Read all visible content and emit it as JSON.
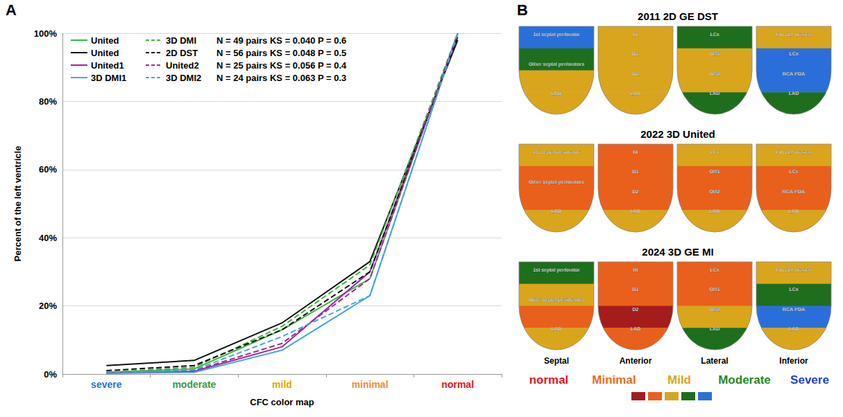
{
  "chart_data": {
    "type": "line",
    "panel": "A",
    "x_label": "CFC color map",
    "y_label": "Percent of the left ventricle",
    "categories": [
      "severe",
      "moderate",
      "mild",
      "minimal",
      "normal"
    ],
    "category_colors": [
      "#2a6fd9",
      "#3c9a3c",
      "#e0a800",
      "#f08a3c",
      "#e8141b"
    ],
    "ylim": [
      0,
      100
    ],
    "yticks": [
      {
        "value": 0,
        "label": "0%"
      },
      {
        "value": 20,
        "label": "20%"
      },
      {
        "value": 40,
        "label": "40%"
      },
      {
        "value": 60,
        "label": "60%"
      },
      {
        "value": 80,
        "label": "80%"
      },
      {
        "value": 100,
        "label": "100%"
      }
    ],
    "grid": true,
    "legend": "upper left",
    "series": [
      {
        "name": "United",
        "color": "#3cb43c",
        "line_style": "solid",
        "values": [
          0.5,
          1.5,
          13,
          28,
          100
        ]
      },
      {
        "name": "United",
        "color": "#111111",
        "line_style": "solid",
        "values": [
          2.5,
          4,
          15,
          33,
          98
        ]
      },
      {
        "name": "United1",
        "color": "#9b2a9b",
        "line_style": "solid",
        "values": [
          0.3,
          0.8,
          8,
          30,
          99
        ]
      },
      {
        "name": "3D DMI1",
        "color": "#4aa3df",
        "line_style": "solid",
        "values": [
          0.2,
          0.5,
          7,
          23,
          100
        ]
      },
      {
        "name": "3D DMI",
        "color": "#3cb43c",
        "line_style": "dashed",
        "stats": "N = 49 pairs KS = 0.040 P = 0.6",
        "values": [
          0.5,
          2,
          14,
          32,
          100
        ]
      },
      {
        "name": "2D DST",
        "color": "#111111",
        "line_style": "dashed",
        "stats": "N = 56 pairs KS = 0.048 P = 0.5",
        "values": [
          1,
          2.5,
          13,
          30,
          99
        ]
      },
      {
        "name": "United2",
        "color": "#9b2a9b",
        "line_style": "dashed",
        "stats": "N = 25 pairs KS = 0.056 P = 0.4",
        "values": [
          0.3,
          1,
          9,
          28,
          100
        ]
      },
      {
        "name": "3D DMI2",
        "color": "#4aa3df",
        "line_style": "dashed",
        "stats": "N = 24 pairs KS = 0.063 P = 0.3",
        "values": [
          0.3,
          1.2,
          11,
          23,
          100
        ]
      }
    ]
  },
  "panel_b": {
    "panel": "B",
    "views": [
      "Septal",
      "Anterior",
      "Lateral",
      "Inferior"
    ],
    "vessel_labels": {
      "Septal": [
        "1st septal perforator",
        "Other septal perforators",
        "LAD"
      ],
      "Anterior": [
        "RI",
        "D1",
        "D2",
        "LAD"
      ],
      "Lateral": [
        "LCx",
        "OM1",
        "OM2",
        "LAD"
      ],
      "Inferior": [
        "Post LV branch",
        "LCx",
        "RCA-PDA",
        "LAD"
      ]
    },
    "maps": [
      {
        "title": "2011 2D GE DST",
        "bands": [
          [
            "Severe",
            "Moderate",
            "Mild",
            "Mild"
          ],
          [
            "Mild",
            "Mild",
            "Mild",
            "Mild"
          ],
          [
            "Moderate",
            "Mild",
            "Mild",
            "Moderate"
          ],
          [
            "Mild",
            "Severe",
            "Severe",
            "Moderate"
          ]
        ]
      },
      {
        "title": "2022  3D United",
        "bands": [
          [
            "Mild",
            "Minimal",
            "Minimal",
            "Mild"
          ],
          [
            "Minimal",
            "Minimal",
            "Minimal",
            "Mild"
          ],
          [
            "Mild",
            "Minimal",
            "Minimal",
            "Mild"
          ],
          [
            "Mild",
            "Minimal",
            "Minimal",
            "Mild"
          ]
        ]
      },
      {
        "title": "2024  3D GE MI",
        "bands": [
          [
            "Moderate",
            "Mild",
            "Minimal",
            "Mild"
          ],
          [
            "Minimal",
            "Minimal",
            "normal",
            "Minimal"
          ],
          [
            "Minimal",
            "Minimal",
            "Mild",
            "Moderate"
          ],
          [
            "Mild",
            "Moderate",
            "Severe",
            "Mild"
          ]
        ]
      }
    ],
    "color_legend": [
      {
        "name": "normal",
        "color": "#a51c1c",
        "text_color": "#e8141b"
      },
      {
        "name": "Minimal",
        "color": "#e8601c",
        "text_color": "#f06a1c"
      },
      {
        "name": "Mild",
        "color": "#d9a51c",
        "text_color": "#d9a51c"
      },
      {
        "name": "Moderate",
        "color": "#1e6e1e",
        "text_color": "#1e8a1e"
      },
      {
        "name": "Severe",
        "color": "#2a6fd9",
        "text_color": "#1e3fe0"
      }
    ]
  }
}
